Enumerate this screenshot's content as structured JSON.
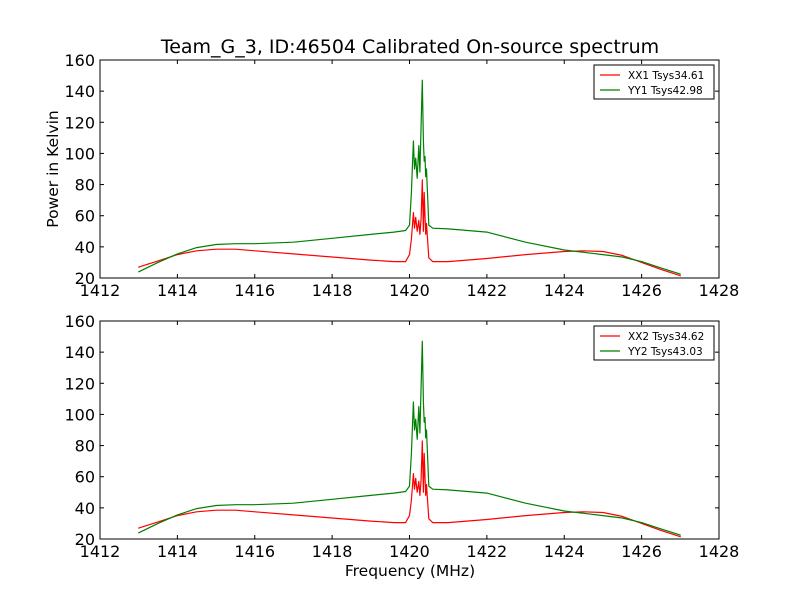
{
  "chart_data": [
    {
      "type": "line",
      "title": "Team_G_3, ID:46504 Calibrated On-source spectrum",
      "xlabel": "",
      "ylabel": "Power in Kelvin",
      "xlim": [
        1412,
        1428
      ],
      "ylim": [
        20,
        160
      ],
      "xticks": [
        "1412",
        "1414",
        "1416",
        "1418",
        "1420",
        "1422",
        "1424",
        "1426",
        "1428"
      ],
      "yticks": [
        "20",
        "40",
        "60",
        "80",
        "100",
        "120",
        "140",
        "160"
      ],
      "grid": false,
      "legend_position": "top-right",
      "series": [
        {
          "name": "XX1 Tsys34.61",
          "color": "#ff0000",
          "x": [
            1413.0,
            1413.5,
            1414.0,
            1414.5,
            1415.0,
            1415.5,
            1416.0,
            1417.0,
            1418.0,
            1419.0,
            1419.6,
            1419.9,
            1420.0,
            1420.05,
            1420.1,
            1420.13,
            1420.16,
            1420.2,
            1420.24,
            1420.27,
            1420.3,
            1420.33,
            1420.36,
            1420.38,
            1420.4,
            1420.42,
            1420.44,
            1420.5,
            1420.6,
            1421.0,
            1422.0,
            1423.0,
            1424.0,
            1424.5,
            1425.0,
            1425.5,
            1426.0,
            1426.5,
            1427.0
          ],
          "y": [
            27,
            31,
            35,
            37.5,
            38.5,
            38.5,
            37.5,
            35.5,
            33.5,
            31.5,
            30.5,
            30.5,
            35,
            45,
            62,
            52,
            59,
            50,
            57,
            48,
            58,
            83,
            50,
            75,
            60,
            48,
            55,
            33,
            30.5,
            30.5,
            32.5,
            35,
            37,
            37.5,
            37,
            34.5,
            30,
            25.5,
            21.5
          ]
        },
        {
          "name": "YY1 Tsys42.98",
          "color": "#008000",
          "x": [
            1413.0,
            1413.5,
            1414.0,
            1414.5,
            1415.0,
            1415.5,
            1416.0,
            1417.0,
            1418.0,
            1419.0,
            1419.6,
            1419.9,
            1420.0,
            1420.05,
            1420.1,
            1420.13,
            1420.16,
            1420.2,
            1420.24,
            1420.27,
            1420.3,
            1420.33,
            1420.36,
            1420.38,
            1420.4,
            1420.42,
            1420.44,
            1420.5,
            1420.6,
            1421.0,
            1422.0,
            1423.0,
            1424.0,
            1424.5,
            1425.0,
            1425.5,
            1426.0,
            1426.5,
            1427.0
          ],
          "y": [
            24,
            30,
            35.5,
            39.5,
            41.5,
            42,
            42,
            43,
            45.5,
            48,
            49.5,
            50.5,
            54,
            75,
            108,
            90,
            97,
            84,
            105,
            88,
            118,
            147,
            108,
            95,
            98,
            85,
            90,
            54,
            52,
            51.5,
            49.5,
            43,
            38,
            36.5,
            35,
            33.5,
            30.5,
            26.5,
            22.5
          ]
        }
      ]
    },
    {
      "type": "line",
      "title": "",
      "xlabel": "Frequency (MHz)",
      "ylabel": "",
      "xlim": [
        1412,
        1428
      ],
      "ylim": [
        20,
        160
      ],
      "xticks": [
        "1412",
        "1414",
        "1416",
        "1418",
        "1420",
        "1422",
        "1424",
        "1426",
        "1428"
      ],
      "yticks": [
        "20",
        "40",
        "60",
        "80",
        "100",
        "120",
        "140",
        "160"
      ],
      "grid": false,
      "legend_position": "top-right",
      "series": [
        {
          "name": "XX2 Tsys34.62",
          "color": "#ff0000",
          "x": [
            1413.0,
            1413.5,
            1414.0,
            1414.5,
            1415.0,
            1415.5,
            1416.0,
            1417.0,
            1418.0,
            1419.0,
            1419.6,
            1419.9,
            1420.0,
            1420.05,
            1420.1,
            1420.13,
            1420.16,
            1420.2,
            1420.24,
            1420.27,
            1420.3,
            1420.33,
            1420.36,
            1420.38,
            1420.4,
            1420.42,
            1420.44,
            1420.5,
            1420.6,
            1421.0,
            1422.0,
            1423.0,
            1424.0,
            1424.5,
            1425.0,
            1425.5,
            1426.0,
            1426.5,
            1427.0
          ],
          "y": [
            27,
            31,
            35,
            37.5,
            38.5,
            38.5,
            37.5,
            35.5,
            33.5,
            31.5,
            30.5,
            30.5,
            35,
            45,
            62,
            52,
            59,
            50,
            57,
            48,
            58,
            83,
            50,
            75,
            60,
            48,
            55,
            33,
            30.5,
            30.5,
            32.5,
            35,
            37,
            37.5,
            37,
            34.5,
            30,
            25.5,
            21.5
          ]
        },
        {
          "name": "YY2 Tsys43.03",
          "color": "#008000",
          "x": [
            1413.0,
            1413.5,
            1414.0,
            1414.5,
            1415.0,
            1415.5,
            1416.0,
            1417.0,
            1418.0,
            1419.0,
            1419.6,
            1419.9,
            1420.0,
            1420.05,
            1420.1,
            1420.13,
            1420.16,
            1420.2,
            1420.24,
            1420.27,
            1420.3,
            1420.33,
            1420.36,
            1420.38,
            1420.4,
            1420.42,
            1420.44,
            1420.5,
            1420.6,
            1421.0,
            1422.0,
            1423.0,
            1424.0,
            1424.5,
            1425.0,
            1425.5,
            1426.0,
            1426.5,
            1427.0
          ],
          "y": [
            24,
            30,
            35.5,
            39.5,
            41.5,
            42,
            42,
            43,
            45.5,
            48,
            49.5,
            50.5,
            54,
            75,
            108,
            90,
            97,
            84,
            105,
            88,
            118,
            147,
            108,
            95,
            98,
            85,
            90,
            54,
            52,
            51.5,
            49.5,
            43,
            38,
            36.5,
            35,
            33.5,
            30.5,
            26.5,
            22.5
          ]
        }
      ]
    }
  ]
}
